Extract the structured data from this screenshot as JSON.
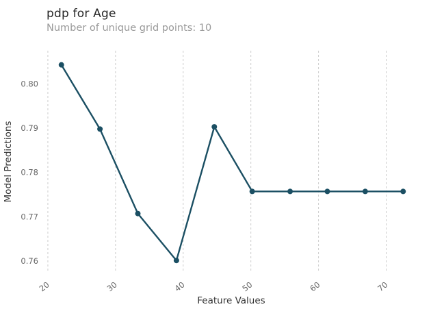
{
  "chart_data": {
    "type": "line",
    "title": "pdp for Age",
    "subtitle": "Number of unique grid points: 10",
    "xlabel": "Feature Values",
    "ylabel": "Model Predictions",
    "x": [
      22.0,
      27.7,
      33.3,
      39.0,
      44.6,
      50.2,
      55.8,
      61.3,
      66.9,
      72.5
    ],
    "y": [
      0.8043,
      0.7898,
      0.7707,
      0.7601,
      0.7903,
      0.7757,
      0.7757,
      0.7757,
      0.7757,
      0.7757
    ],
    "xlim": [
      19.5,
      74.8
    ],
    "ylim": [
      0.7575,
      0.8075
    ],
    "xticks": [
      20,
      30,
      40,
      50,
      60,
      70
    ],
    "ytick_values": [
      0.76,
      0.77,
      0.78,
      0.79,
      0.8
    ],
    "ytick_labels": [
      "0.76",
      "0.77",
      "0.78",
      "0.79",
      "0.80"
    ],
    "grid": "vertical-dashed",
    "legend": "none",
    "line_color": "#1b4f63",
    "marker_color": "#1b4f63",
    "grid_color": "#cccccc",
    "tick_label_color": "#666666",
    "axis_label_color": "#333333"
  }
}
